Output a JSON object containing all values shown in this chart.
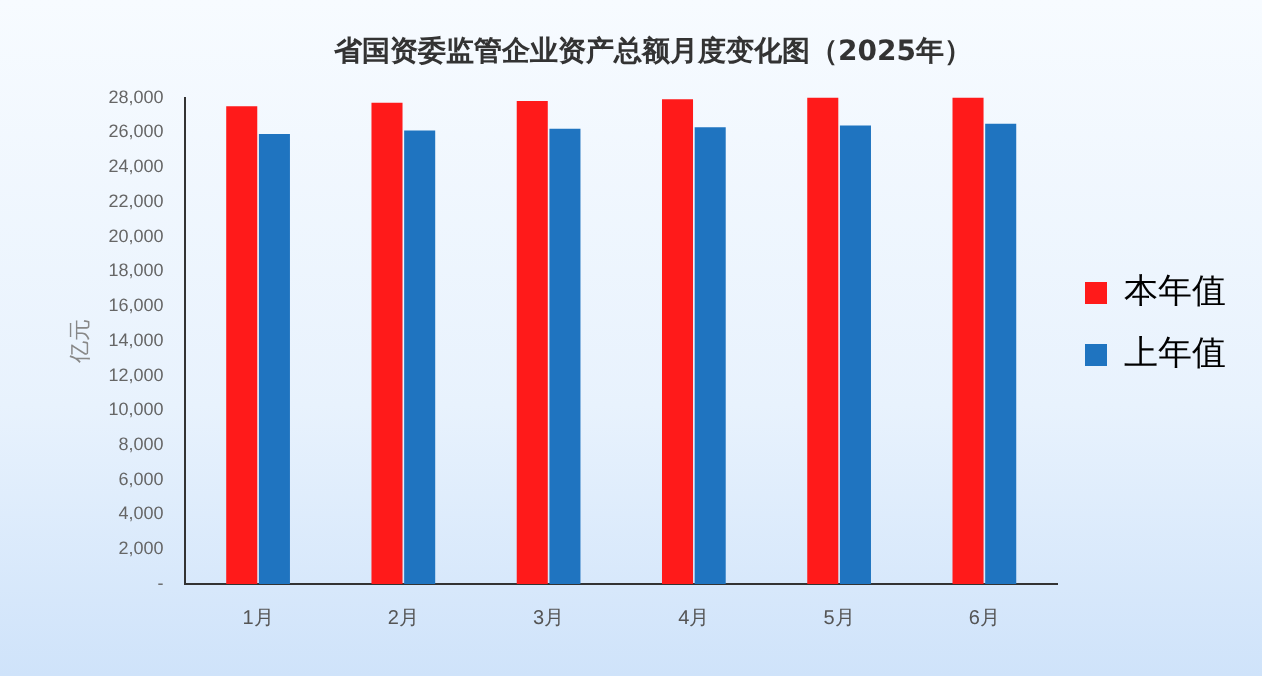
{
  "chart_data": {
    "type": "bar",
    "title": "省国资委监管企业资产总额月度变化图（2025年）",
    "ylabel": "亿元",
    "categories": [
      "1月",
      "2月",
      "3月",
      "4月",
      "5月",
      "6月"
    ],
    "series": [
      {
        "name": "本年值",
        "color": "#ff1a1a",
        "values": [
          27500,
          27700,
          27800,
          27900,
          28000,
          28000
        ]
      },
      {
        "name": "上年值",
        "color": "#1f74c0",
        "values": [
          25900,
          26100,
          26200,
          26300,
          26400,
          26500
        ]
      }
    ],
    "ylim": [
      0,
      28000
    ],
    "yticks": [
      {
        "value": 0,
        "label": "-"
      },
      {
        "value": 2000,
        "label": "2,000"
      },
      {
        "value": 4000,
        "label": "4,000"
      },
      {
        "value": 6000,
        "label": "6,000"
      },
      {
        "value": 8000,
        "label": "8,000"
      },
      {
        "value": 10000,
        "label": "10,000"
      },
      {
        "value": 12000,
        "label": "12,000"
      },
      {
        "value": 14000,
        "label": "14,000"
      },
      {
        "value": 16000,
        "label": "16,000"
      },
      {
        "value": 18000,
        "label": "18,000"
      },
      {
        "value": 20000,
        "label": "20,000"
      },
      {
        "value": 22000,
        "label": "22,000"
      },
      {
        "value": 24000,
        "label": "24,000"
      },
      {
        "value": 26000,
        "label": "26,000"
      },
      {
        "value": 28000,
        "label": "28,000"
      }
    ],
    "grid": false,
    "legend": "right"
  }
}
